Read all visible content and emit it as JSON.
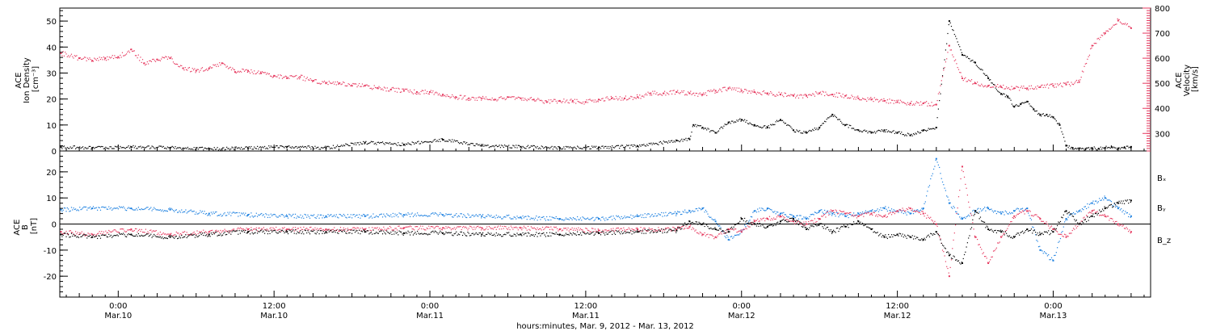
{
  "chart_data": [
    {
      "type": "scatter",
      "panel": "plasma",
      "ylabel": [
        "ACE",
        "Ion Density",
        "[cm⁻³]"
      ],
      "ylim": [
        0,
        55
      ],
      "yticks": [
        0,
        10,
        20,
        30,
        40,
        50
      ],
      "ylabel_right": [
        "ACE",
        "Velocity",
        "[km/s]"
      ],
      "ylim_right": [
        230,
        800
      ],
      "yticks_right": [
        300,
        400,
        500,
        600,
        700,
        800
      ],
      "x_units": "hours since 2012-03-09 00:00 UT",
      "xlim": [
        19.5,
        103.5
      ],
      "series": [
        {
          "name": "Ion Density",
          "color": "#000000",
          "axis": "left",
          "x": [
            19.6,
            22,
            25,
            28,
            31,
            34,
            37,
            40,
            43,
            46,
            49,
            52,
            55,
            58,
            61,
            64,
            67,
            68,
            68.3,
            69,
            70,
            71,
            72,
            73,
            74,
            75,
            76,
            77,
            78,
            79,
            80,
            81,
            82,
            83,
            84,
            85,
            86,
            87,
            88,
            89,
            90,
            91,
            92,
            92.5,
            93,
            93.5,
            94,
            94.5,
            95,
            95.5,
            96,
            96.5,
            97,
            97.5,
            98,
            98.5,
            99,
            99.5,
            100,
            100.5,
            101,
            101.5,
            102
          ],
          "y": [
            1.5,
            1.2,
            1.5,
            1.2,
            0.8,
            1.1,
            1.6,
            1.2,
            3.2,
            2.5,
            4.3,
            2.0,
            1.6,
            1.2,
            1.4,
            1.8,
            4.0,
            4.5,
            10,
            9,
            7,
            11,
            12,
            10,
            9,
            12,
            8,
            7,
            9,
            14,
            10,
            8,
            7,
            8,
            7,
            6,
            8,
            9,
            50,
            37,
            34,
            28,
            22,
            21,
            17,
            18,
            19,
            16,
            14,
            14,
            13,
            10,
            2.0,
            1.2,
            1.0,
            0.8,
            1.0,
            0.9,
            1.2,
            1.5,
            1.0,
            1.3,
            1.6
          ]
        },
        {
          "name": "Velocity",
          "color": "#e6395f",
          "axis": "right",
          "x": [
            19.6,
            21,
            22,
            23,
            24,
            25,
            26,
            27,
            28,
            29,
            30,
            31,
            32,
            33,
            34,
            35,
            36,
            37,
            38,
            39,
            40,
            41,
            42,
            43,
            44,
            45,
            46,
            47,
            48,
            49,
            50,
            51,
            52,
            53,
            54,
            55,
            56,
            57,
            58,
            59,
            60,
            61,
            62,
            63,
            64,
            65,
            66,
            67,
            68,
            69,
            70,
            71,
            72,
            73,
            74,
            75,
            76,
            77,
            78,
            79,
            80,
            81,
            82,
            83,
            84,
            85,
            86,
            87,
            88,
            89,
            90,
            91,
            92,
            93,
            94,
            95,
            96,
            97,
            98,
            99,
            100,
            101,
            102
          ],
          "y": [
            620,
            600,
            590,
            600,
            605,
            635,
            580,
            595,
            600,
            560,
            550,
            560,
            580,
            545,
            550,
            540,
            530,
            520,
            525,
            510,
            500,
            500,
            490,
            490,
            480,
            475,
            470,
            465,
            465,
            455,
            445,
            440,
            440,
            435,
            445,
            440,
            435,
            425,
            430,
            430,
            425,
            435,
            440,
            440,
            445,
            460,
            460,
            465,
            460,
            455,
            470,
            480,
            470,
            465,
            460,
            455,
            450,
            450,
            460,
            455,
            450,
            440,
            435,
            430,
            425,
            420,
            420,
            415,
            650,
            520,
            500,
            490,
            485,
            480,
            480,
            485,
            490,
            495,
            505,
            650,
            700,
            750,
            720
          ]
        }
      ]
    },
    {
      "type": "scatter",
      "panel": "magnetic",
      "ylabel": [
        "ACE",
        "B",
        "[nT]"
      ],
      "ylim": [
        -28,
        28
      ],
      "yticks": [
        -20,
        -10,
        0,
        10,
        20
      ],
      "zero_line": true,
      "x_units": "hours since 2012-03-09 00:00 UT",
      "xlim": [
        19.5,
        103.5
      ],
      "legend": [
        "Bₓ",
        "Bᵧ",
        "B_z"
      ],
      "legend_position": "right",
      "series": [
        {
          "name": "Bₓ",
          "color": "#000000",
          "x": [
            19.6,
            22,
            25,
            28,
            31,
            34,
            37,
            40,
            43,
            46,
            49,
            52,
            55,
            58,
            61,
            64,
            67,
            68,
            69,
            70,
            71,
            72,
            73,
            74,
            75,
            76,
            77,
            78,
            79,
            80,
            81,
            82,
            83,
            84,
            85,
            86,
            87,
            88,
            89,
            90,
            91,
            92,
            93,
            94,
            95,
            96,
            97,
            98,
            99,
            100,
            101,
            102
          ],
          "y": [
            -4,
            -5,
            -4,
            -5,
            -4,
            -3,
            -3,
            -3,
            -3,
            -3.5,
            -3.5,
            -4,
            -4,
            -4,
            -3.5,
            -3,
            -2.5,
            1,
            0,
            -2,
            -3,
            2,
            0,
            -1,
            1,
            2,
            -2,
            0,
            -3,
            -1,
            1,
            -2,
            -5,
            -4,
            -5,
            -6,
            -3,
            -12,
            -15,
            5,
            -2,
            -3,
            -5,
            -2,
            -4,
            -3,
            5,
            0,
            3,
            6,
            8,
            9
          ]
        },
        {
          "name": "Bᵧ",
          "color": "#1a7fe0",
          "x": [
            19.6,
            22,
            25,
            28,
            31,
            34,
            37,
            40,
            43,
            46,
            49,
            52,
            55,
            58,
            61,
            64,
            67,
            68,
            69,
            70,
            71,
            72,
            73,
            74,
            75,
            76,
            77,
            78,
            79,
            80,
            81,
            82,
            83,
            84,
            85,
            86,
            87,
            88,
            89,
            90,
            91,
            92,
            93,
            94,
            95,
            96,
            97,
            98,
            99,
            100,
            101,
            102
          ],
          "y": [
            5.5,
            6,
            6,
            5.5,
            4,
            3.5,
            3,
            3,
            3,
            3.5,
            3.5,
            3,
            2.5,
            2,
            2,
            3,
            4,
            5,
            6,
            1,
            -6,
            -3,
            5,
            6,
            4,
            3,
            2,
            5,
            4,
            3,
            4,
            5,
            6,
            5,
            4,
            6,
            25,
            8,
            2,
            5,
            6,
            4,
            5,
            6,
            -10,
            -14,
            2,
            5,
            8,
            10,
            6,
            3
          ]
        },
        {
          "name": "B_z",
          "color": "#e6395f",
          "x": [
            19.6,
            22,
            25,
            28,
            31,
            34,
            37,
            40,
            43,
            46,
            49,
            52,
            55,
            58,
            61,
            64,
            67,
            68,
            69,
            70,
            71,
            72,
            73,
            74,
            75,
            76,
            77,
            78,
            79,
            80,
            81,
            82,
            83,
            84,
            85,
            86,
            87,
            88,
            89,
            90,
            91,
            92,
            93,
            94,
            95,
            96,
            97,
            98,
            99,
            100,
            101,
            102
          ],
          "y": [
            -3,
            -4,
            -2,
            -4,
            -3,
            -2,
            -2,
            -2,
            -2,
            -1.5,
            -1.5,
            -1.5,
            -1.5,
            -2,
            -2.5,
            -2,
            -2,
            -1,
            -4,
            -5,
            -2,
            -3,
            1,
            2,
            3,
            1,
            0,
            2,
            5,
            4,
            3,
            4,
            3,
            5,
            6,
            4,
            0,
            -20,
            22,
            -5,
            -15,
            -5,
            3,
            5,
            2,
            -2,
            -5,
            0,
            5,
            3,
            0,
            -3
          ]
        }
      ]
    }
  ],
  "x_axis": {
    "ticks": [
      {
        "x": 24,
        "time": "0:00",
        "date": "Mar.10"
      },
      {
        "x": 36,
        "time": "12:00",
        "date": "Mar.10"
      },
      {
        "x": 48,
        "time": "0:00",
        "date": "Mar.11"
      },
      {
        "x": 60,
        "time": "12:00",
        "date": "Mar.11"
      },
      {
        "x": 72,
        "time": "0:00",
        "date": "Mar.12"
      },
      {
        "x": 84,
        "time": "12:00",
        "date": "Mar.12"
      },
      {
        "x": 96,
        "time": "0:00",
        "date": "Mar.13"
      }
    ],
    "caption": "hours:minutes, Mar.  9, 2012 - Mar. 13, 2012"
  }
}
